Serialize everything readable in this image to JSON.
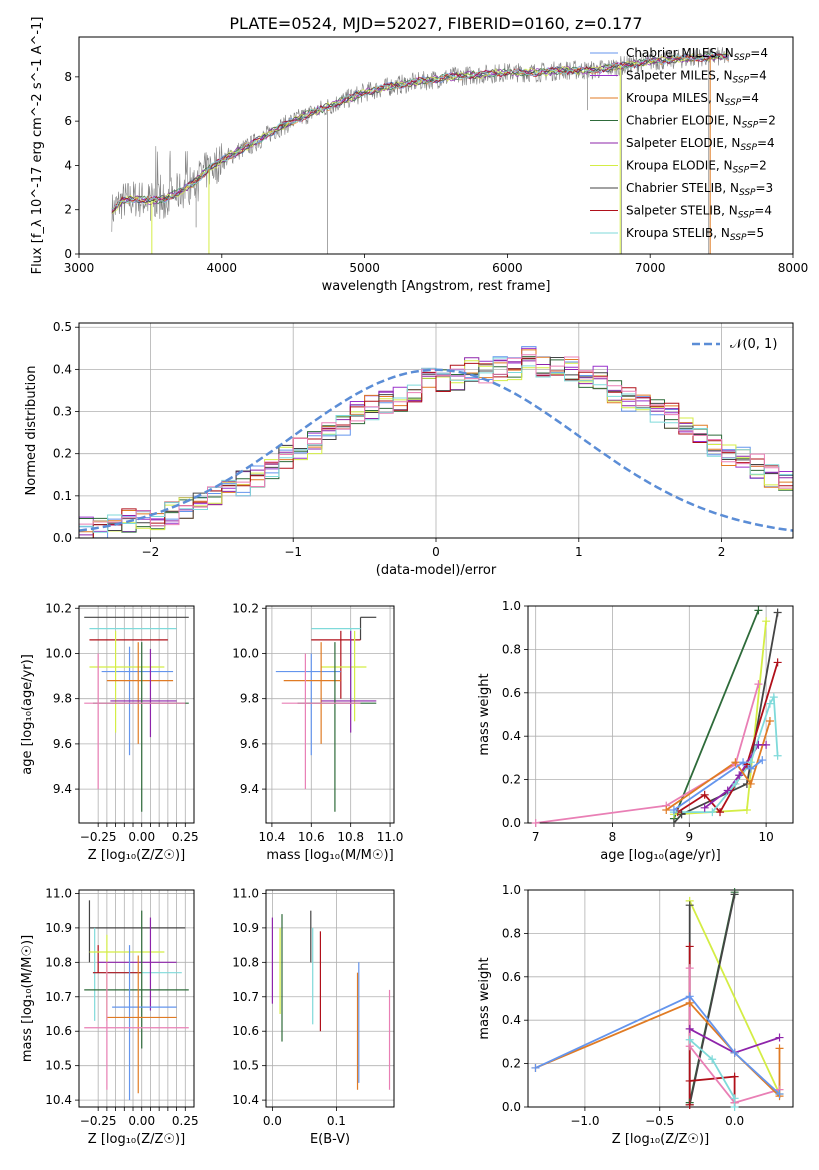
{
  "title": "PLATE=0524, MJD=52027, FIBERID=0160, z=0.177",
  "colors": {
    "Chabrier MILES": "#6495ed",
    "Salpeter MILES": "#9932cc",
    "Kroupa MILES": "#e07b24",
    "Chabrier ELODIE": "#2e6b3a",
    "Salpeter ELODIE": "#8e24aa",
    "Kroupa ELODIE": "#d4ed45",
    "Chabrier STELIB": "#444444",
    "Salpeter STELIB": "#b0101a",
    "Kroupa STELIB": "#7fdada",
    "data": "#808080",
    "normal": "#5b8dd6",
    "pink": "#e97fb5"
  },
  "chart_data": [
    {
      "id": "spectrum",
      "type": "line",
      "xlabel": "wavelength [Angstrom, rest frame]",
      "ylabel": "Flux [f_λ 10^-17 erg cm^-2 s^-1 A^-1]",
      "xlim": [
        3000,
        8000
      ],
      "ylim": [
        0,
        9.8
      ],
      "xticks": [
        3000,
        4000,
        5000,
        6000,
        7000,
        8000
      ],
      "yticks": [
        0,
        2,
        4,
        6,
        8
      ],
      "legend_position": "top-right",
      "legend": [
        {
          "label": "Chabrier MILES, N",
          "sub": "SSP",
          "tail": "=4"
        },
        {
          "label": "Salpeter MILES, N",
          "sub": "SSP",
          "tail": "=4"
        },
        {
          "label": "Kroupa MILES, N",
          "sub": "SSP",
          "tail": "=4"
        },
        {
          "label": "Chabrier ELODIE, N",
          "sub": "SSP",
          "tail": "=2"
        },
        {
          "label": "Salpeter ELODIE, N",
          "sub": "SSP",
          "tail": "=4"
        },
        {
          "label": "Kroupa ELODIE, N",
          "sub": "SSP",
          "tail": "=2"
        },
        {
          "label": "Chabrier STELIB, N",
          "sub": "SSP",
          "tail": "=3"
        },
        {
          "label": "Salpeter STELIB, N",
          "sub": "SSP",
          "tail": "=4"
        },
        {
          "label": "Kroupa STELIB, N",
          "sub": "SSP",
          "tail": "=5"
        }
      ],
      "continuum": [
        [
          3230,
          1.9
        ],
        [
          3300,
          2.4
        ],
        [
          3400,
          2.5
        ],
        [
          3500,
          2.4
        ],
        [
          3600,
          2.5
        ],
        [
          3700,
          2.8
        ],
        [
          3800,
          3.2
        ],
        [
          3900,
          3.8
        ],
        [
          4000,
          4.2
        ],
        [
          4100,
          4.6
        ],
        [
          4200,
          4.9
        ],
        [
          4400,
          5.7
        ],
        [
          4600,
          6.3
        ],
        [
          4800,
          6.8
        ],
        [
          5000,
          7.3
        ],
        [
          5200,
          7.6
        ],
        [
          5400,
          7.8
        ],
        [
          5600,
          8.0
        ],
        [
          5800,
          8.1
        ],
        [
          6000,
          8.2
        ],
        [
          6200,
          8.2
        ],
        [
          6400,
          8.3
        ],
        [
          6600,
          8.3
        ],
        [
          6800,
          8.5
        ],
        [
          7000,
          8.7
        ],
        [
          7200,
          8.8
        ],
        [
          7400,
          8.9
        ],
        [
          7550,
          8.9
        ]
      ]
    },
    {
      "id": "residuals",
      "type": "histogram",
      "xlabel": "(data-model)/error",
      "ylabel": "Normed distribution",
      "xlim": [
        -2.5,
        2.5
      ],
      "ylim": [
        0,
        0.51
      ],
      "xticks": [
        -2,
        -1,
        0,
        1,
        2
      ],
      "yticks": [
        0.0,
        0.1,
        0.2,
        0.3,
        0.4,
        0.5
      ],
      "legend_position": "top-right",
      "legend_label": "𝒩(0, 1)",
      "bin_edges_start": -2.5,
      "bin_width": 0.1,
      "reference_values": [
        0.02,
        0.03,
        0.03,
        0.04,
        0.04,
        0.04,
        0.06,
        0.07,
        0.09,
        0.1,
        0.11,
        0.13,
        0.15,
        0.17,
        0.19,
        0.21,
        0.23,
        0.25,
        0.27,
        0.3,
        0.31,
        0.32,
        0.33,
        0.35,
        0.38,
        0.37,
        0.38,
        0.4,
        0.39,
        0.4,
        0.4,
        0.43,
        0.4,
        0.41,
        0.4,
        0.38,
        0.38,
        0.35,
        0.33,
        0.31,
        0.3,
        0.29,
        0.27,
        0.25,
        0.22,
        0.2,
        0.19,
        0.17,
        0.15,
        0.13,
        0.11,
        0.1,
        0.09,
        0.07,
        0.06,
        0.05,
        0.04,
        0.03,
        0.03,
        0.02
      ]
    },
    {
      "id": "age-vs-Z",
      "type": "errorbar",
      "xlabel": "Z [log₁₀(Z/Z☉)]",
      "ylabel": "age  [log₁₀(age/yr)]",
      "xlim": [
        -0.36,
        0.3
      ],
      "ylim": [
        9.25,
        10.21
      ],
      "xticks": [
        -0.25,
        -0.2,
        -0.15,
        -0.1,
        -0.05,
        0.0,
        0.05,
        0.1,
        0.15,
        0.2,
        0.25
      ],
      "xtick_labels": [
        "−0.25",
        "",
        "",
        "",
        "",
        "0.00",
        "",
        "",
        "",
        "",
        "0.25"
      ],
      "yticks": [
        9.4,
        9.6,
        9.8,
        10.0,
        10.2
      ]
    },
    {
      "id": "age-vs-mass",
      "type": "errorbar",
      "xlabel": "mass [log₁₀(M/M☉)]",
      "ylabel": "",
      "xlim": [
        10.37,
        11.02
      ],
      "ylim": [
        9.25,
        10.21
      ],
      "xticks": [
        10.4,
        10.6,
        10.8,
        11.0
      ],
      "yticks": [
        9.4,
        9.6,
        9.8,
        10.0,
        10.2
      ]
    },
    {
      "id": "massweight-vs-age",
      "type": "line",
      "xlabel": "age  [log₁₀(age/yr)]",
      "ylabel": "mass weight",
      "xlim": [
        6.9,
        10.35
      ],
      "ylim": [
        0,
        1.0
      ],
      "xticks": [
        7,
        8,
        9,
        10
      ],
      "yticks": [
        0.0,
        0.2,
        0.4,
        0.6,
        0.8,
        1.0
      ]
    },
    {
      "id": "mass-vs-Z",
      "type": "errorbar",
      "xlabel": "Z [log₁₀(Z/Z☉)]",
      "ylabel": "mass [log₁₀(M/M☉)]",
      "xlim": [
        -0.36,
        0.3
      ],
      "ylim": [
        10.38,
        11.01
      ],
      "xticks": [
        -0.25,
        -0.2,
        -0.15,
        -0.1,
        -0.05,
        0.0,
        0.05,
        0.1,
        0.15,
        0.2,
        0.25
      ],
      "xtick_labels": [
        "−0.25",
        "",
        "",
        "",
        "",
        "0.00",
        "",
        "",
        "",
        "",
        "0.25"
      ],
      "yticks": [
        10.4,
        10.5,
        10.6,
        10.7,
        10.8,
        10.9,
        11.0
      ]
    },
    {
      "id": "mass-vs-ebv",
      "type": "errorbar",
      "xlabel": "E(B-V)",
      "ylabel": "",
      "xlim": [
        -0.01,
        0.19
      ],
      "ylim": [
        10.38,
        11.01
      ],
      "xticks": [
        0.0,
        0.1
      ],
      "yticks": [
        10.4,
        10.5,
        10.6,
        10.7,
        10.8,
        10.9,
        11.0
      ]
    },
    {
      "id": "massweight-vs-Z",
      "type": "line",
      "xlabel": "Z [log₁₀(Z/Z☉)]",
      "ylabel": "mass weight",
      "xlim": [
        -1.38,
        0.39
      ],
      "ylim": [
        0,
        1.0
      ],
      "xticks": [
        -1.0,
        -0.5,
        0.0
      ],
      "yticks": [
        0.0,
        0.2,
        0.4,
        0.6,
        0.8,
        1.0
      ]
    }
  ],
  "errorbars_ageZ": [
    {
      "c": "Chabrier STELIB",
      "x": -0.05,
      "xe": [
        -0.33,
        0.27
      ],
      "y": 10.16,
      "ye": [
        10.16,
        10.16
      ]
    },
    {
      "c": "Kroupa STELIB",
      "x": -0.05,
      "xe": [
        -0.3,
        0.2
      ],
      "y": 10.11,
      "ye": [
        10.11,
        10.11
      ]
    },
    {
      "c": "Salpeter STELIB",
      "x": -0.05,
      "xe": [
        -0.3,
        0.15
      ],
      "y": 10.06,
      "ye": [
        10.06,
        10.06
      ]
    },
    {
      "c": "Chabrier MILES",
      "x": -0.07,
      "xe": [
        -0.23,
        0.18
      ],
      "y": 9.92,
      "ye": [
        9.55,
        10.03
      ]
    },
    {
      "c": "Kroupa ELODIE",
      "x": -0.15,
      "xe": [
        -0.3,
        0.13
      ],
      "y": 9.94,
      "ye": [
        9.65,
        10.1
      ]
    },
    {
      "c": "Kroupa MILES",
      "x": -0.02,
      "xe": [
        -0.2,
        0.18
      ],
      "y": 9.88,
      "ye": [
        9.6,
        10.05
      ]
    },
    {
      "c": "Salpeter ELODIE",
      "x": 0.05,
      "xe": [
        -0.18,
        0.2
      ],
      "y": 9.79,
      "ye": [
        9.63,
        10.02
      ]
    },
    {
      "c": "Chabrier ELODIE",
      "x": 0.0,
      "xe": [
        -0.28,
        0.27
      ],
      "y": 9.78,
      "ye": [
        9.3,
        10.05
      ]
    },
    {
      "c": "pink",
      "x": -0.25,
      "xe": [
        -0.33,
        0.25
      ],
      "y": 9.78,
      "ye": [
        9.4,
        10.0
      ]
    }
  ],
  "errorbars_ageMass": [
    {
      "c": "Chabrier STELIB",
      "x": 10.85,
      "xe": [
        10.85,
        10.93
      ],
      "y": 10.16,
      "ye": [
        10.06,
        10.16
      ]
    },
    {
      "c": "Kroupa STELIB",
      "x": 10.8,
      "xe": [
        10.6,
        10.85
      ],
      "y": 10.11,
      "ye": [
        9.75,
        10.11
      ]
    },
    {
      "c": "Salpeter STELIB",
      "x": 10.75,
      "xe": [
        10.6,
        10.85
      ],
      "y": 10.06,
      "ye": [
        9.8,
        10.1
      ]
    },
    {
      "c": "Chabrier MILES",
      "x": 10.6,
      "xe": [
        10.42,
        10.75
      ],
      "y": 9.92,
      "ye": [
        9.55,
        10.0
      ]
    },
    {
      "c": "Kroupa ELODIE",
      "x": 10.82,
      "xe": [
        10.65,
        10.88
      ],
      "y": 9.94,
      "ye": [
        9.7,
        10.1
      ]
    },
    {
      "c": "Kroupa MILES",
      "x": 10.65,
      "xe": [
        10.46,
        10.75
      ],
      "y": 9.88,
      "ye": [
        9.6,
        10.05
      ]
    },
    {
      "c": "Salpeter ELODIE",
      "x": 10.8,
      "xe": [
        10.65,
        10.93
      ],
      "y": 9.79,
      "ye": [
        9.65,
        10.1
      ]
    },
    {
      "c": "Chabrier ELODIE",
      "x": 10.72,
      "xe": [
        10.53,
        10.93
      ],
      "y": 9.78,
      "ye": [
        9.3,
        10.05
      ]
    },
    {
      "c": "pink",
      "x": 10.57,
      "xe": [
        10.45,
        10.85
      ],
      "y": 9.78,
      "ye": [
        9.4,
        10.0
      ]
    }
  ],
  "errorbars_massZ": [
    {
      "c": "Chabrier STELIB",
      "x": -0.3,
      "xe": [
        -0.3,
        0.25
      ],
      "y": 10.9,
      "ye": [
        10.8,
        10.98
      ]
    },
    {
      "c": "Kroupa STELIB",
      "x": -0.27,
      "xe": [
        -0.28,
        0.23
      ],
      "y": 10.77,
      "ye": [
        10.63,
        10.9
      ]
    },
    {
      "c": "Salpeter STELIB",
      "x": -0.25,
      "xe": [
        -0.28,
        0.0
      ],
      "y": 10.77,
      "ye": [
        10.77,
        10.85
      ]
    },
    {
      "c": "Kroupa ELODIE",
      "x": -0.2,
      "xe": [
        -0.3,
        0.13
      ],
      "y": 10.83,
      "ye": [
        10.63,
        10.88
      ]
    },
    {
      "c": "Salpeter ELODIE",
      "x": 0.05,
      "xe": [
        -0.25,
        0.2
      ],
      "y": 10.8,
      "ye": [
        10.66,
        10.93
      ]
    },
    {
      "c": "Chabrier ELODIE",
      "x": 0.0,
      "xe": [
        -0.33,
        0.27
      ],
      "y": 10.72,
      "ye": [
        10.55,
        10.95
      ]
    },
    {
      "c": "Chabrier MILES",
      "x": -0.07,
      "xe": [
        -0.17,
        0.2
      ],
      "y": 10.67,
      "ye": [
        10.4,
        10.85
      ]
    },
    {
      "c": "Kroupa MILES",
      "x": -0.02,
      "xe": [
        -0.2,
        0.2
      ],
      "y": 10.64,
      "ye": [
        10.42,
        10.82
      ]
    },
    {
      "c": "pink",
      "x": -0.2,
      "xe": [
        -0.33,
        0.27
      ],
      "y": 10.61,
      "ye": [
        10.43,
        10.8
      ]
    }
  ],
  "errorbars_massEbv": [
    {
      "c": "Chabrier STELIB",
      "x": 0.06,
      "y": 10.9,
      "ye": [
        10.8,
        10.95
      ]
    },
    {
      "c": "Salpeter STELIB",
      "x": 0.075,
      "y": 10.77,
      "ye": [
        10.6,
        10.89
      ]
    },
    {
      "c": "Kroupa STELIB",
      "x": 0.063,
      "y": 10.76,
      "ye": [
        10.62,
        10.9
      ]
    },
    {
      "c": "Salpeter ELODIE",
      "x": 0.0,
      "y": 10.81,
      "ye": [
        10.68,
        10.93
      ]
    },
    {
      "c": "Chabrier ELODIE",
      "x": 0.015,
      "y": 10.75,
      "ye": [
        10.57,
        10.94
      ]
    },
    {
      "c": "Kroupa ELODIE",
      "x": 0.012,
      "y": 10.74,
      "ye": [
        10.65,
        10.9
      ]
    },
    {
      "c": "Chabrier MILES",
      "x": 0.135,
      "y": 10.63,
      "ye": [
        10.45,
        10.8
      ]
    },
    {
      "c": "Kroupa MILES",
      "x": 0.133,
      "y": 10.6,
      "ye": [
        10.43,
        10.77
      ]
    },
    {
      "c": "pink",
      "x": 0.183,
      "y": 10.58,
      "ye": [
        10.43,
        10.72
      ]
    }
  ],
  "weights_age": [
    {
      "c": "Chabrier ELODIE",
      "pts": [
        [
          8.8,
          0.02
        ],
        [
          9.9,
          0.98
        ]
      ]
    },
    {
      "c": "Kroupa ELODIE",
      "pts": [
        [
          8.8,
          0.04
        ],
        [
          9.75,
          0.06
        ],
        [
          10.0,
          0.93
        ]
      ]
    },
    {
      "c": "Chabrier STELIB",
      "pts": [
        [
          8.8,
          0.0
        ],
        [
          8.9,
          0.04
        ],
        [
          9.75,
          0.18
        ],
        [
          10.15,
          0.97
        ]
      ]
    },
    {
      "c": "Salpeter STELIB",
      "pts": [
        [
          8.85,
          0.05
        ],
        [
          9.2,
          0.13
        ],
        [
          9.4,
          0.05
        ],
        [
          9.75,
          0.27
        ],
        [
          10.15,
          0.74
        ]
      ]
    },
    {
      "c": "pink",
      "pts": [
        [
          7.0,
          0.0
        ],
        [
          8.7,
          0.08
        ],
        [
          9.6,
          0.27
        ],
        [
          9.9,
          0.64
        ]
      ]
    },
    {
      "c": "Salpeter ELODIE",
      "pts": [
        [
          9.2,
          0.07
        ],
        [
          9.5,
          0.15
        ],
        [
          9.65,
          0.22
        ],
        [
          9.9,
          0.36
        ],
        [
          10.0,
          0.36
        ]
      ]
    },
    {
      "c": "Kroupa STELIB",
      "pts": [
        [
          8.8,
          0.05
        ],
        [
          9.3,
          0.05
        ],
        [
          9.6,
          0.18
        ],
        [
          9.8,
          0.28
        ],
        [
          10.05,
          0.55
        ],
        [
          10.1,
          0.58
        ],
        [
          10.15,
          0.31
        ]
      ]
    },
    {
      "c": "Kroupa MILES",
      "pts": [
        [
          8.7,
          0.06
        ],
        [
          9.6,
          0.28
        ],
        [
          9.8,
          0.18
        ],
        [
          10.05,
          0.47
        ]
      ]
    },
    {
      "c": "Chabrier MILES",
      "pts": [
        [
          8.8,
          0.06
        ],
        [
          9.7,
          0.28
        ],
        [
          9.8,
          0.25
        ],
        [
          9.95,
          0.29
        ]
      ]
    }
  ],
  "weights_Z": [
    {
      "c": "Chabrier ELODIE",
      "pts": [
        [
          -0.3,
          0.02
        ],
        [
          0.0,
          0.99
        ]
      ]
    },
    {
      "c": "Kroupa ELODIE",
      "pts": [
        [
          -0.3,
          0.95
        ],
        [
          0.3,
          0.06
        ]
      ]
    },
    {
      "c": "Chabrier STELIB",
      "pts": [
        [
          -0.3,
          0.93
        ],
        [
          -0.3,
          0.01
        ],
        [
          0.0,
          0.98
        ]
      ]
    },
    {
      "c": "Salpeter STELIB",
      "pts": [
        [
          -0.3,
          0.74
        ],
        [
          -0.3,
          0.01
        ],
        [
          -0.3,
          0.12
        ],
        [
          0.0,
          0.14
        ],
        [
          0.0,
          0.02
        ]
      ]
    },
    {
      "c": "pink",
      "pts": [
        [
          -0.3,
          0.64
        ],
        [
          -0.3,
          0.28
        ],
        [
          0.0,
          0.02
        ],
        [
          0.3,
          0.08
        ]
      ]
    },
    {
      "c": "Salpeter ELODIE",
      "pts": [
        [
          -0.3,
          0.36
        ],
        [
          0.0,
          0.25
        ],
        [
          0.3,
          0.32
        ]
      ]
    },
    {
      "c": "Kroupa STELIB",
      "pts": [
        [
          -0.3,
          0.31
        ],
        [
          -0.15,
          0.22
        ],
        [
          0.0,
          0.04
        ],
        [
          0.0,
          0.0
        ]
      ]
    },
    {
      "c": "Kroupa MILES",
      "pts": [
        [
          -1.33,
          0.18
        ],
        [
          -0.3,
          0.48
        ],
        [
          0.0,
          0.25
        ],
        [
          0.3,
          0.05
        ],
        [
          0.3,
          0.27
        ]
      ]
    },
    {
      "c": "Chabrier MILES",
      "pts": [
        [
          -1.33,
          0.18
        ],
        [
          -0.3,
          0.51
        ],
        [
          0.0,
          0.25
        ],
        [
          0.3,
          0.06
        ]
      ]
    }
  ]
}
